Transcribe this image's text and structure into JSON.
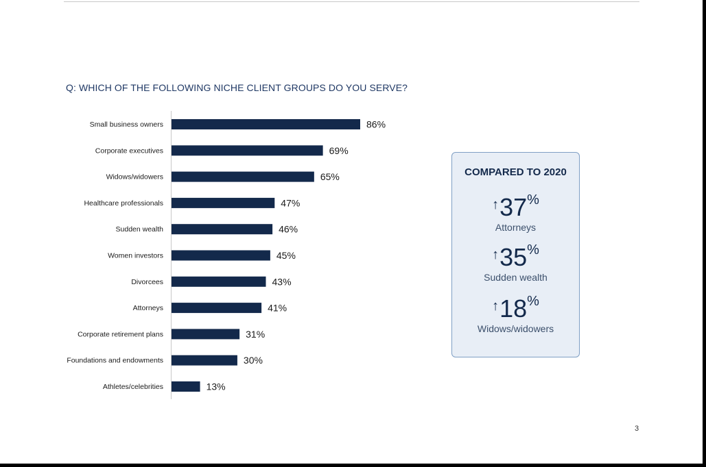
{
  "page": {
    "question": "Q: WHICH OF THE FOLLOWING NICHE CLIENT GROUPS DO YOU SERVE?",
    "page_number": "3"
  },
  "chart_data": {
    "type": "bar",
    "orientation": "horizontal",
    "title": "Q: WHICH OF THE FOLLOWING NICHE CLIENT GROUPS DO YOU SERVE?",
    "categories": [
      "Small business owners",
      "Corporate executives",
      "Widows/widowers",
      "Healthcare professionals",
      "Sudden wealth",
      "Women investors",
      "Divorcees",
      "Attorneys",
      "Corporate retirement plans",
      "Foundations and endowments",
      "Athletes/celebrities"
    ],
    "values": [
      86,
      69,
      65,
      47,
      46,
      45,
      43,
      41,
      31,
      30,
      13
    ],
    "value_labels": [
      "86%",
      "69%",
      "65%",
      "47%",
      "46%",
      "45%",
      "43%",
      "41%",
      "31%",
      "30%",
      "13%"
    ],
    "unit": "%",
    "bar_color": "#13294b",
    "grid": false,
    "legend": "none"
  },
  "panel": {
    "title": "COMPARED TO 2020",
    "arrow_icon": "up-arrow-icon",
    "percent_sign": "%",
    "stats": [
      {
        "value": "37",
        "label": "Attorneys"
      },
      {
        "value": "35",
        "label": "Sudden wealth"
      },
      {
        "value": "18",
        "label": "Widows/widowers"
      }
    ],
    "accent_color": "#13294b",
    "background_color": "#e8eef6",
    "border_color": "#7f9fc4"
  }
}
